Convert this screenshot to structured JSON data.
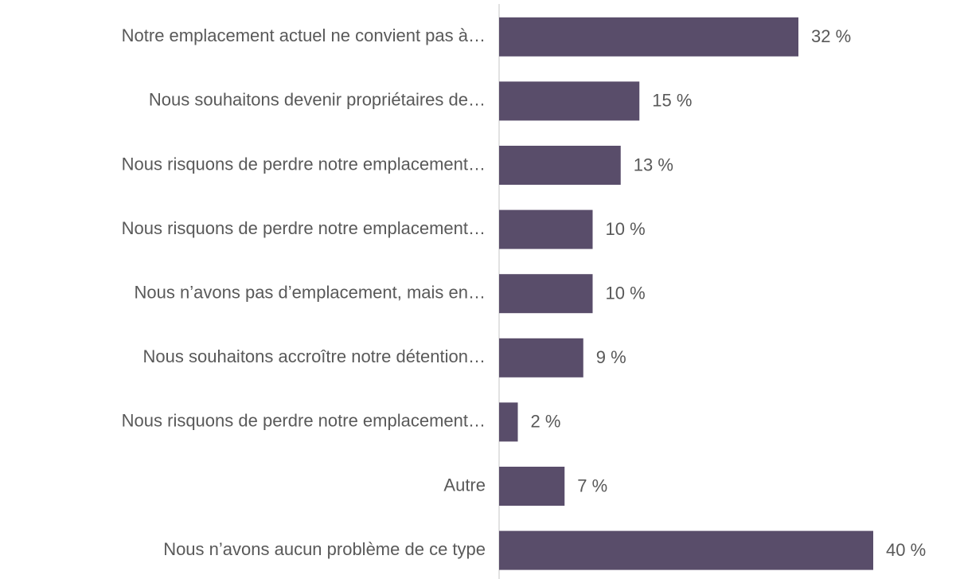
{
  "chart_data": {
    "type": "bar",
    "orientation": "horizontal",
    "color": "#594d6a",
    "categories": [
      "Notre emplacement actuel ne convient pas à…",
      "Nous souhaitons devenir propriétaires de…",
      "Nous risquons de perdre notre emplacement…",
      "Nous risquons de perdre notre emplacement…",
      "Nous n’avons pas d’emplacement, mais en…",
      "Nous souhaitons accroître notre détention…",
      "Nous risquons de perdre notre emplacement…",
      "Autre",
      "Nous n’avons aucun problème de ce type"
    ],
    "values": [
      32,
      15,
      13,
      10,
      10,
      9,
      2,
      7,
      40
    ],
    "value_labels": [
      "32 %",
      "15 %",
      "13 %",
      "10 %",
      "10 %",
      "9 %",
      "2 %",
      "7 %",
      "40 %"
    ]
  }
}
